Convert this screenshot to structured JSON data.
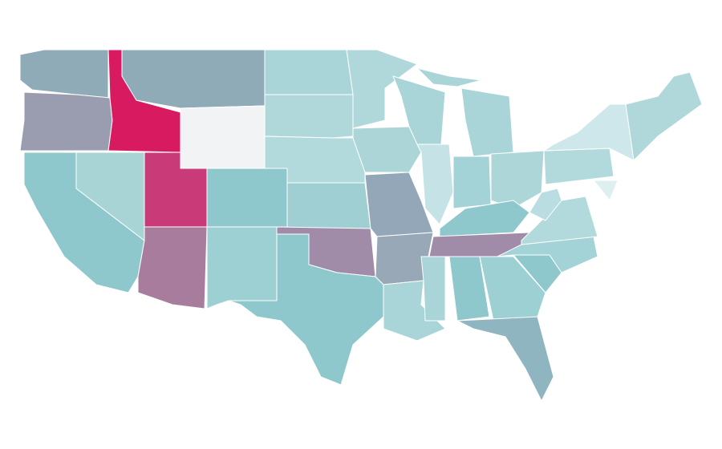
{
  "map": {
    "regions": [
      {
        "color": "#8fabb8"
      },
      {
        "color": "#9a9cb0"
      },
      {
        "color": "#d81b60"
      },
      {
        "color": "#8fabb8"
      },
      {
        "color": "#f2f3f5"
      },
      {
        "color": "#8ec8cc"
      },
      {
        "color": "#a8d4d6"
      },
      {
        "color": "#c83a78"
      },
      {
        "color": "#a87c9c"
      },
      {
        "color": "#8ec8cc"
      },
      {
        "color": "#9cd0d2"
      },
      {
        "color": "#a9d5d8"
      },
      {
        "color": "#b0d8db"
      },
      {
        "color": "#b2dadd"
      },
      {
        "color": "#9fcfd2"
      },
      {
        "color": "#a08ca8"
      },
      {
        "color": "#8ec8cc"
      },
      {
        "color": "#b0d8db"
      },
      {
        "color": "#acd5d8"
      },
      {
        "color": "#93a7b8"
      },
      {
        "color": "#98a8b6"
      },
      {
        "color": "#a9d5d8"
      },
      {
        "color": "#a9d5d8"
      },
      {
        "color": "#c5e3e6"
      },
      {
        "color": "#a9d5d8"
      },
      {
        "color": "#a9d5d8"
      },
      {
        "color": "#a3d3d6"
      },
      {
        "color": "#add6d9"
      },
      {
        "color": "#8ec8cc"
      },
      {
        "color": "#a08ca8"
      },
      {
        "color": "#a9d5d8"
      },
      {
        "color": "#8ec8cc"
      },
      {
        "color": "#9cd0d2"
      },
      {
        "color": "#8fb5c0"
      },
      {
        "color": "#8ec8cc"
      },
      {
        "color": "#a3d3d6"
      },
      {
        "color": "#b2dadd"
      },
      {
        "color": "#b9dde0"
      },
      {
        "color": "#b2dadd"
      },
      {
        "color": "#cde7ea"
      },
      {
        "color": "#b0d8db"
      },
      {
        "color": "#ddeff1"
      }
    ]
  }
}
